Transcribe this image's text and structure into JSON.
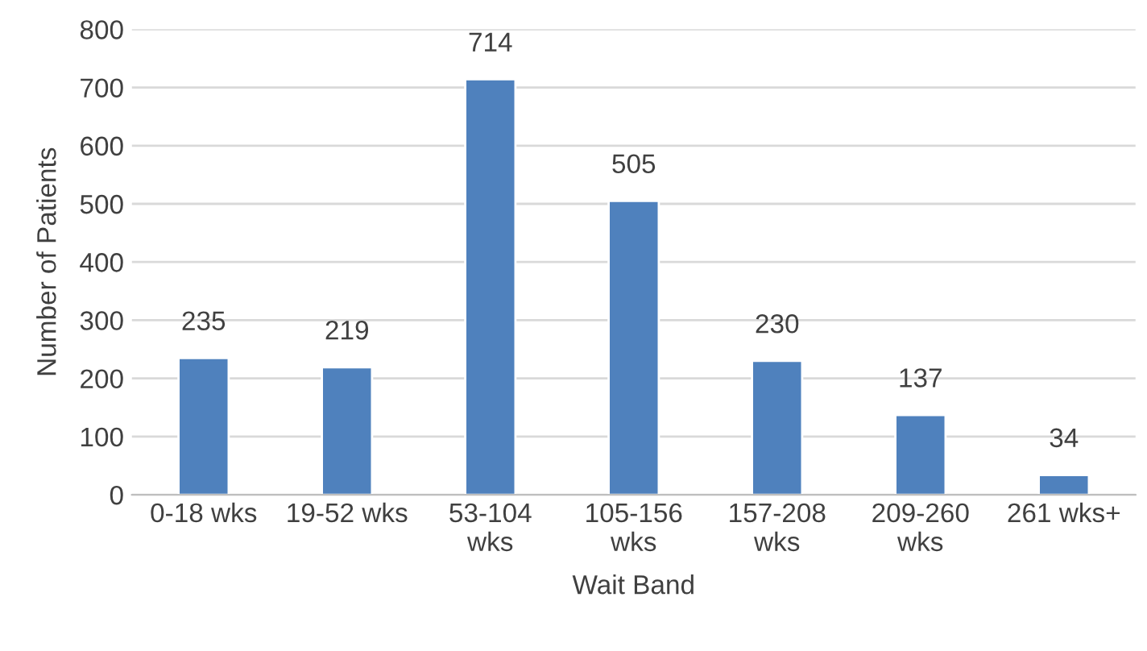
{
  "chart_data": {
    "type": "bar",
    "xlabel": "Wait Band",
    "ylabel": "Number of Patients",
    "categories": [
      "0-18 wks",
      "19-52 wks",
      "53-104 wks",
      "105-156 wks",
      "157-208 wks",
      "209-260 wks",
      "261 wks+"
    ],
    "values": [
      235,
      219,
      714,
      505,
      230,
      137,
      34
    ],
    "color": "#4f81bd",
    "ylim": [
      0,
      800
    ],
    "yticks": [
      0,
      100,
      200,
      300,
      400,
      500,
      600,
      700,
      800
    ],
    "grid": "y",
    "data_labels": true
  }
}
